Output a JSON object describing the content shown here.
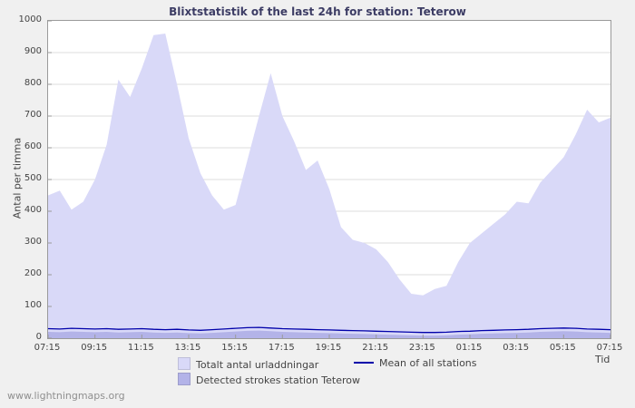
{
  "watermark": "www.lightningmaps.org",
  "chart_data": {
    "type": "area",
    "title": "Blixtstatistik of the last 24h for station: Teterow",
    "ylabel": "Antal per timma",
    "xlabel": "Tid",
    "ylim": [
      0,
      1000
    ],
    "yticks": [
      0,
      100,
      200,
      300,
      400,
      500,
      600,
      700,
      800,
      900,
      1000
    ],
    "xticks": [
      "07:15",
      "09:15",
      "11:15",
      "13:15",
      "15:15",
      "17:15",
      "19:15",
      "21:15",
      "23:15",
      "01:15",
      "03:15",
      "05:15",
      "07:15"
    ],
    "grid": "horizontal",
    "legend_position": "bottom",
    "x": [
      "07:15",
      "07:45",
      "08:15",
      "08:45",
      "09:15",
      "09:45",
      "10:15",
      "10:45",
      "11:15",
      "11:45",
      "12:15",
      "12:45",
      "13:15",
      "13:45",
      "14:15",
      "14:45",
      "15:15",
      "15:45",
      "16:15",
      "16:45",
      "17:15",
      "17:45",
      "18:15",
      "18:45",
      "19:15",
      "19:45",
      "20:15",
      "20:45",
      "21:15",
      "21:45",
      "22:15",
      "22:45",
      "23:15",
      "23:45",
      "00:15",
      "00:45",
      "01:15",
      "01:45",
      "02:15",
      "02:45",
      "03:15",
      "03:45",
      "04:15",
      "04:45",
      "05:15",
      "05:45",
      "06:15",
      "06:45",
      "07:15"
    ],
    "series": [
      {
        "name": "Totalt antal urladdningar",
        "type": "area",
        "color": "#d9d9f8",
        "values": [
          450,
          465,
          405,
          430,
          500,
          610,
          815,
          760,
          850,
          955,
          960,
          800,
          630,
          520,
          450,
          405,
          420,
          560,
          700,
          835,
          700,
          620,
          530,
          560,
          470,
          350,
          310,
          300,
          280,
          240,
          185,
          140,
          135,
          155,
          165,
          240,
          300,
          330,
          360,
          390,
          430,
          425,
          490,
          530,
          570,
          640,
          720,
          680,
          695
        ]
      },
      {
        "name": "Detected strokes station Teterow",
        "type": "area",
        "color": "#b3b3e8",
        "values": [
          20,
          19,
          21,
          20,
          19,
          20,
          18,
          19,
          20,
          18,
          17,
          18,
          16,
          15,
          17,
          19,
          21,
          23,
          24,
          22,
          20,
          19,
          18,
          17,
          16,
          15,
          14,
          13,
          12,
          11,
          10,
          9,
          8,
          8,
          9,
          11,
          12,
          14,
          15,
          16,
          17,
          18,
          20,
          21,
          22,
          21,
          19,
          18,
          17
        ]
      },
      {
        "name": "Mean of all stations",
        "type": "line",
        "color": "#0000aa",
        "values": [
          30,
          29,
          31,
          30,
          29,
          30,
          28,
          29,
          30,
          28,
          27,
          28,
          26,
          25,
          27,
          29,
          31,
          33,
          34,
          32,
          30,
          29,
          28,
          27,
          26,
          25,
          24,
          23,
          22,
          21,
          20,
          19,
          18,
          18,
          19,
          21,
          22,
          24,
          25,
          26,
          27,
          28,
          30,
          31,
          32,
          31,
          29,
          28,
          27
        ]
      }
    ]
  }
}
